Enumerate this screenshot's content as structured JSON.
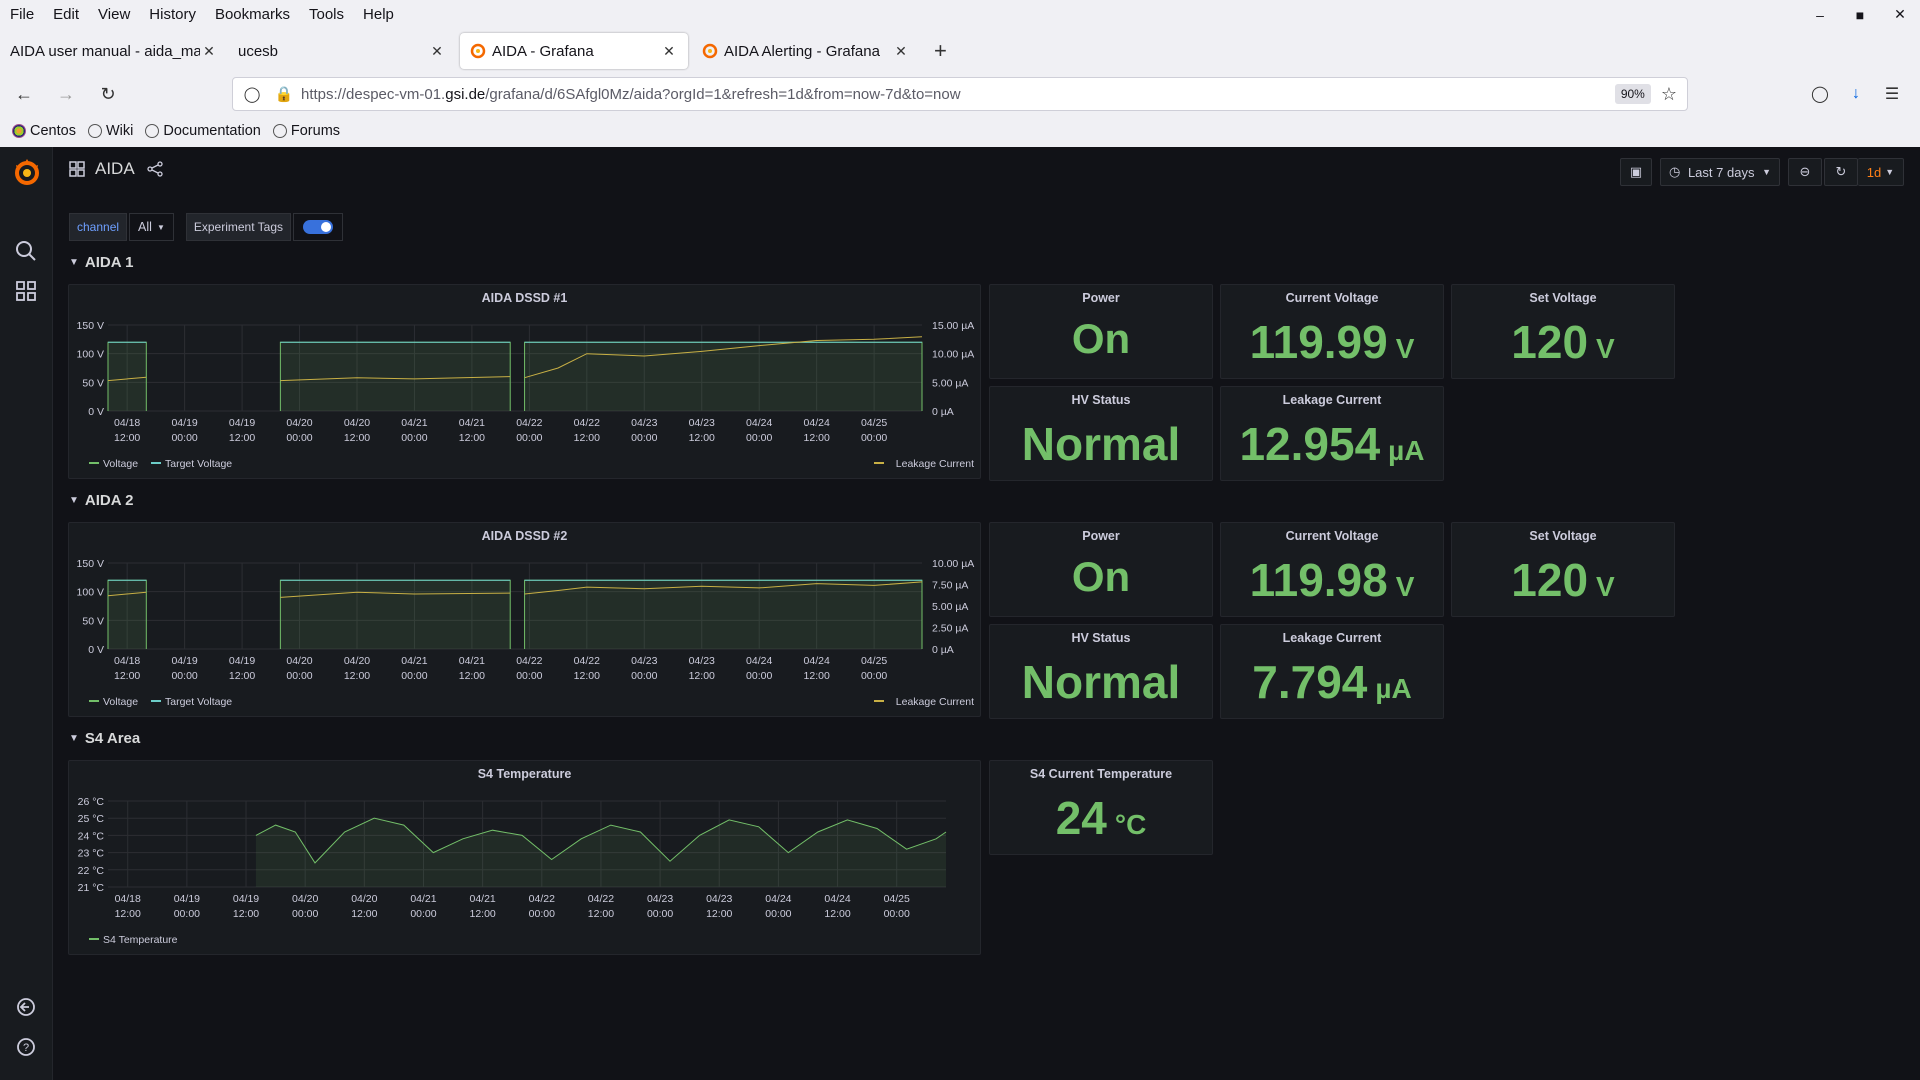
{
  "browser": {
    "menu": [
      "File",
      "Edit",
      "View",
      "History",
      "Bookmarks",
      "Tools",
      "Help"
    ],
    "tabs": [
      {
        "label": "AIDA user manual - aida_man",
        "active": false
      },
      {
        "label": "ucesb",
        "active": false
      },
      {
        "label": "AIDA - Grafana",
        "active": true
      },
      {
        "label": "AIDA Alerting - Grafana",
        "active": false
      }
    ],
    "url_prefix": "https://despec-vm-01.",
    "url_domain": "gsi.de",
    "url_suffix": "/grafana/d/6SAfgl0Mz/aida?orgId=1&refresh=1d&from=now-7d&to=now",
    "zoom": "90%",
    "bookmarks": [
      "Centos",
      "Wiki",
      "Documentation",
      "Forums"
    ]
  },
  "dashboard": {
    "title": "AIDA",
    "time_range": "Last 7 days",
    "refresh": "1d",
    "variables": {
      "label": "channel",
      "value": "All",
      "tags_label": "Experiment Tags",
      "tags_enabled": true
    },
    "rows": [
      "AIDA 1",
      "AIDA 2",
      "S4 Area"
    ]
  },
  "stats": {
    "aida1": {
      "power": {
        "title": "Power",
        "value": "On"
      },
      "current_voltage": {
        "title": "Current Voltage",
        "value": "119.99",
        "unit": "V"
      },
      "set_voltage": {
        "title": "Set Voltage",
        "value": "120",
        "unit": "V"
      },
      "hv_status": {
        "title": "HV Status",
        "value": "Normal"
      },
      "leakage": {
        "title": "Leakage Current",
        "value": "12.954",
        "unit": "µA"
      }
    },
    "aida2": {
      "power": {
        "title": "Power",
        "value": "On"
      },
      "current_voltage": {
        "title": "Current Voltage",
        "value": "119.98",
        "unit": "V"
      },
      "set_voltage": {
        "title": "Set Voltage",
        "value": "120",
        "unit": "V"
      },
      "hv_status": {
        "title": "HV Status",
        "value": "Normal"
      },
      "leakage": {
        "title": "Leakage Current",
        "value": "7.794",
        "unit": "µA"
      }
    },
    "s4": {
      "title": "S4 Current Temperature",
      "value": "24",
      "unit": "°C"
    }
  },
  "colors": {
    "stat_green": "#73bf69",
    "voltage_line": "#73bf69",
    "target_line": "#6ccdc8",
    "leakage_line": "#c8b045",
    "temp_line": "#73bf69"
  },
  "chart_data": [
    {
      "type": "line",
      "title": "AIDA DSSD #1",
      "x_ticks": [
        "04/18 12:00",
        "04/19 00:00",
        "04/19 12:00",
        "04/20 00:00",
        "04/20 12:00",
        "04/21 00:00",
        "04/21 12:00",
        "04/22 00:00",
        "04/22 12:00",
        "04/23 00:00",
        "04/23 12:00",
        "04/24 00:00",
        "04/24 12:00",
        "04/25 00:00"
      ],
      "x_range": [
        "04/18 08:00",
        "04/25 10:00"
      ],
      "y_left": {
        "ticks": [
          "0 V",
          "50 V",
          "100 V",
          "150 V"
        ],
        "range": [
          0,
          150
        ],
        "unit": "V"
      },
      "y_right": {
        "ticks": [
          "0 µA",
          "5.00 µA",
          "10.00 µA",
          "15.00 µA"
        ],
        "range": [
          0,
          15
        ],
        "unit": "µA"
      },
      "legend": [
        "Voltage",
        "Target Voltage",
        "Leakage Current"
      ],
      "segments": [
        [
          "04/18 08:00",
          "04/18 16:00"
        ],
        [
          "04/19 20:00",
          "04/21 20:00"
        ],
        [
          "04/21 23:00",
          "04/25 10:00"
        ]
      ],
      "series": [
        {
          "name": "Voltage",
          "axis": "left",
          "values": [
            120,
            120,
            120
          ]
        },
        {
          "name": "Target Voltage",
          "axis": "left",
          "values": [
            120,
            120,
            120
          ]
        },
        {
          "name": "Leakage Current",
          "axis": "right",
          "points": [
            [
              "04/18 08:00",
              5.3
            ],
            [
              "04/18 16:00",
              5.9
            ],
            [
              "04/19 20:00",
              5.3
            ],
            [
              "04/20 12:00",
              5.8
            ],
            [
              "04/21 00:00",
              5.6
            ],
            [
              "04/21 20:00",
              6.0
            ],
            [
              "04/21 23:00",
              5.8
            ],
            [
              "04/22 06:00",
              7.5
            ],
            [
              "04/22 12:00",
              10.0
            ],
            [
              "04/23 00:00",
              9.6
            ],
            [
              "04/23 12:00",
              10.4
            ],
            [
              "04/24 00:00",
              11.4
            ],
            [
              "04/24 12:00",
              12.3
            ],
            [
              "04/25 00:00",
              12.5
            ],
            [
              "04/25 10:00",
              12.95
            ]
          ]
        }
      ]
    },
    {
      "type": "line",
      "title": "AIDA DSSD #2",
      "x_ticks": [
        "04/18 12:00",
        "04/19 00:00",
        "04/19 12:00",
        "04/20 00:00",
        "04/20 12:00",
        "04/21 00:00",
        "04/21 12:00",
        "04/22 00:00",
        "04/22 12:00",
        "04/23 00:00",
        "04/23 12:00",
        "04/24 00:00",
        "04/24 12:00",
        "04/25 00:00"
      ],
      "x_range": [
        "04/18 08:00",
        "04/25 10:00"
      ],
      "y_left": {
        "ticks": [
          "0 V",
          "50 V",
          "100 V",
          "150 V"
        ],
        "range": [
          0,
          150
        ],
        "unit": "V"
      },
      "y_right": {
        "ticks": [
          "0 µA",
          "2.50 µA",
          "5.00 µA",
          "7.50 µA",
          "10.00 µA"
        ],
        "range": [
          0,
          10
        ],
        "unit": "µA"
      },
      "legend": [
        "Voltage",
        "Target Voltage",
        "Leakage Current"
      ],
      "segments": [
        [
          "04/18 08:00",
          "04/18 16:00"
        ],
        [
          "04/19 20:00",
          "04/21 20:00"
        ],
        [
          "04/21 23:00",
          "04/25 10:00"
        ]
      ],
      "series": [
        {
          "name": "Voltage",
          "axis": "left",
          "values": [
            120,
            120,
            120
          ]
        },
        {
          "name": "Target Voltage",
          "axis": "left",
          "values": [
            120,
            120,
            120
          ]
        },
        {
          "name": "Leakage Current",
          "axis": "right",
          "points": [
            [
              "04/18 08:00",
              6.2
            ],
            [
              "04/18 16:00",
              6.6
            ],
            [
              "04/19 20:00",
              6.0
            ],
            [
              "04/20 12:00",
              6.6
            ],
            [
              "04/21 00:00",
              6.4
            ],
            [
              "04/21 20:00",
              6.5
            ],
            [
              "04/21 23:00",
              6.4
            ],
            [
              "04/22 06:00",
              6.8
            ],
            [
              "04/22 12:00",
              7.2
            ],
            [
              "04/23 00:00",
              7.0
            ],
            [
              "04/23 12:00",
              7.3
            ],
            [
              "04/24 00:00",
              7.1
            ],
            [
              "04/24 12:00",
              7.6
            ],
            [
              "04/25 00:00",
              7.4
            ],
            [
              "04/25 10:00",
              7.8
            ]
          ]
        }
      ]
    },
    {
      "type": "line",
      "title": "S4 Temperature",
      "x_ticks": [
        "04/18 12:00",
        "04/19 00:00",
        "04/19 12:00",
        "04/20 00:00",
        "04/20 12:00",
        "04/21 00:00",
        "04/21 12:00",
        "04/22 00:00",
        "04/22 12:00",
        "04/23 00:00",
        "04/23 12:00",
        "04/24 00:00",
        "04/24 12:00",
        "04/25 00:00"
      ],
      "x_range": [
        "04/18 08:00",
        "04/25 10:00"
      ],
      "y_left": {
        "ticks": [
          "21 °C",
          "22 °C",
          "23 °C",
          "24 °C",
          "25 °C",
          "26 °C"
        ],
        "range": [
          21,
          26
        ],
        "unit": "°C"
      },
      "legend": [
        "S4 Temperature"
      ],
      "series": [
        {
          "name": "S4 Temperature",
          "points": [
            [
              "04/19 14:00",
              24.0
            ],
            [
              "04/19 18:00",
              24.6
            ],
            [
              "04/19 22:00",
              24.2
            ],
            [
              "04/20 02:00",
              22.4
            ],
            [
              "04/20 08:00",
              24.2
            ],
            [
              "04/20 14:00",
              25.0
            ],
            [
              "04/20 20:00",
              24.6
            ],
            [
              "04/21 02:00",
              23.0
            ],
            [
              "04/21 08:00",
              23.8
            ],
            [
              "04/21 14:00",
              24.3
            ],
            [
              "04/21 20:00",
              24.0
            ],
            [
              "04/22 02:00",
              22.6
            ],
            [
              "04/22 08:00",
              23.8
            ],
            [
              "04/22 14:00",
              24.6
            ],
            [
              "04/22 20:00",
              24.2
            ],
            [
              "04/23 02:00",
              22.5
            ],
            [
              "04/23 08:00",
              24.0
            ],
            [
              "04/23 14:00",
              24.9
            ],
            [
              "04/23 20:00",
              24.5
            ],
            [
              "04/24 02:00",
              23.0
            ],
            [
              "04/24 08:00",
              24.2
            ],
            [
              "04/24 14:00",
              24.9
            ],
            [
              "04/24 20:00",
              24.4
            ],
            [
              "04/25 02:00",
              23.2
            ],
            [
              "04/25 08:00",
              23.8
            ],
            [
              "04/25 10:00",
              24.2
            ]
          ]
        }
      ]
    }
  ]
}
